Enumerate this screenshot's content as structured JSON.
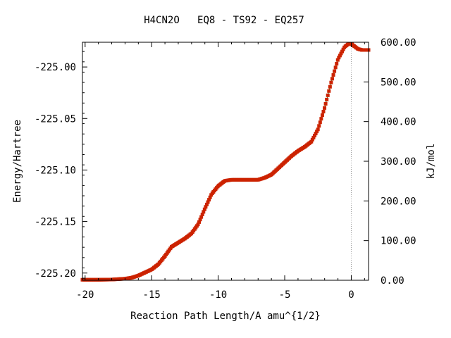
{
  "chart_data": {
    "type": "scatter",
    "title": "H4CN2O   EQ8 - TS92 - EQ257",
    "xlabel": "Reaction Path Length/A amu^{1/2}",
    "ylabel": "Energy/Hartree",
    "y2label": "kJ/mol",
    "xlim": [
      -20.2,
      1.3
    ],
    "ylim": [
      -225.207,
      -224.976
    ],
    "y2lim": [
      0,
      600
    ],
    "xticks": [
      -20,
      -15,
      -10,
      -5,
      0
    ],
    "xtick_labels": [
      "-20",
      "-15",
      "-10",
      "-5",
      "0"
    ],
    "yticks": [
      -225.2,
      -225.15,
      -225.1,
      -225.05,
      -225.0
    ],
    "ytick_labels": [
      "-225.20",
      "-225.15",
      "-225.10",
      "-225.05",
      "-225.00"
    ],
    "y2ticks": [
      0,
      100,
      200,
      300,
      400,
      500,
      600
    ],
    "y2tick_labels": [
      "0.00",
      "100.00",
      "200.00",
      "300.00",
      "400.00",
      "500.00",
      "600.00"
    ],
    "ts_marker_x": 0,
    "grid": false,
    "legend": "none",
    "colors": {
      "line": "#2e8b2e",
      "marker": "#cc2200",
      "ts_line": "#999999",
      "axis": "#000000"
    },
    "series": [
      {
        "x": [
          -20.2,
          -19.0,
          -18.0,
          -17.0,
          -16.5,
          -16.0,
          -15.5,
          -15.0,
          -14.5,
          -14.0,
          -13.5,
          -13.0,
          -12.5,
          -12.0,
          -11.5,
          -11.0,
          -10.5,
          -10.0,
          -9.5,
          -9.0,
          -8.5,
          -8.0,
          -7.5,
          -7.0,
          -6.5,
          -6.0,
          -5.5,
          -5.0,
          -4.5,
          -4.0,
          -3.5,
          -3.0,
          -2.5,
          -2.0,
          -1.5,
          -1.0,
          -0.5,
          -0.2,
          0.0,
          0.2,
          0.5,
          0.8,
          1.0,
          1.3
        ],
        "y": [
          -225.2065,
          -225.2065,
          -225.2063,
          -225.2055,
          -225.2045,
          -225.2025,
          -225.1995,
          -225.1965,
          -225.1915,
          -225.1835,
          -225.1745,
          -225.1705,
          -225.1665,
          -225.1615,
          -225.1525,
          -225.1375,
          -225.1235,
          -225.1155,
          -225.1105,
          -225.1095,
          -225.1095,
          -225.1095,
          -225.1095,
          -225.1095,
          -225.1075,
          -225.1045,
          -225.0985,
          -225.0925,
          -225.0865,
          -225.0815,
          -225.0775,
          -225.0725,
          -225.0605,
          -225.0395,
          -225.0145,
          -224.9925,
          -224.9805,
          -224.9775,
          -224.9775,
          -224.9795,
          -224.9825,
          -224.9835,
          -224.9835,
          -224.9835
        ]
      }
    ]
  }
}
